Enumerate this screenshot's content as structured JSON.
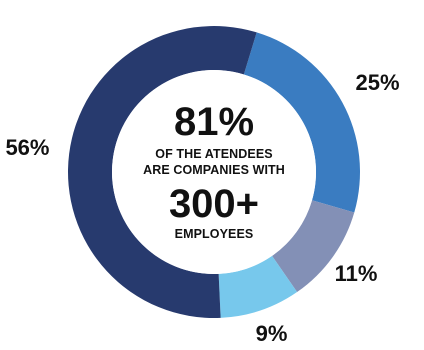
{
  "chart_data": {
    "type": "pie",
    "slices": [
      {
        "value": 25,
        "label": "25%",
        "color": "#3a7cc1"
      },
      {
        "value": 11,
        "label": "11%",
        "color": "#8390b6"
      },
      {
        "value": 9,
        "label": "9%",
        "color": "#77c8ec"
      },
      {
        "value": 56,
        "label": "56%",
        "color": "#273a6e"
      }
    ]
  },
  "center": {
    "headline_1": "81%",
    "text_1": "OF THE ATENDEES",
    "text_2": "ARE COMPANIES WITH",
    "headline_2": "300+",
    "text_3": "EMPLOYEES"
  }
}
